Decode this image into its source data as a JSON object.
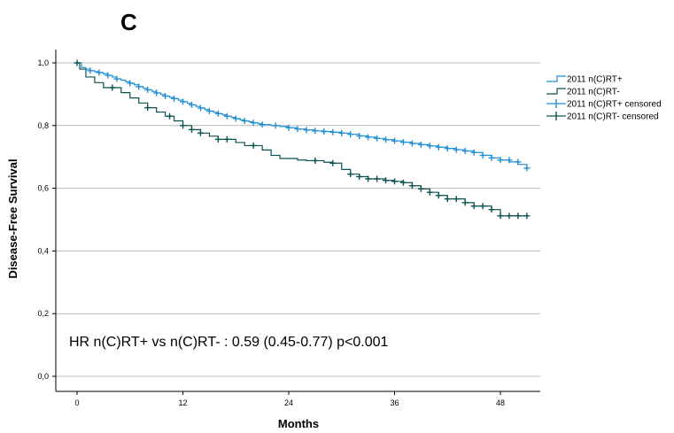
{
  "chart_data": {
    "type": "line",
    "panel_label": "C",
    "xlabel": "Months",
    "ylabel": "Disease-Free Survival",
    "xlim": [
      -2,
      52
    ],
    "ylim": [
      0,
      1.0
    ],
    "x_ticks": [
      0,
      12,
      24,
      36,
      48
    ],
    "x_tick_labels": [
      "0",
      "12",
      "24",
      "36",
      "48"
    ],
    "y_ticks": [
      0.0,
      0.2,
      0.4,
      0.6,
      0.8,
      1.0
    ],
    "y_tick_labels": [
      "0,0",
      "0,2",
      "0,4",
      "0,6",
      "0,8",
      "1,0"
    ],
    "grid": "horizontal",
    "legend_position": "right",
    "legend": [
      {
        "label": "2011 n(C)RT+",
        "kind": "step",
        "color": "#1f8fd6"
      },
      {
        "label": "2011 n(C)RT-",
        "kind": "step",
        "color": "#0b5150"
      },
      {
        "label": "2011 n(C)RT+ censored",
        "kind": "censor",
        "color": "#1f8fd6"
      },
      {
        "label": "2011 n(C)RT- censored",
        "kind": "censor",
        "color": "#0b5150"
      }
    ],
    "annotation": "HR n(C)RT+ vs n(C)RT- : 0.59 (0.45-0.77) p<0.001",
    "series": [
      {
        "name": "2011 n(C)RT+",
        "color": "#1f8fd6",
        "x": [
          0,
          0.5,
          1,
          1.5,
          2,
          2.5,
          3,
          3.5,
          4,
          4.5,
          5,
          5.5,
          6,
          6.5,
          7,
          7.5,
          8,
          8.5,
          9,
          9.5,
          10,
          10.5,
          11,
          11.5,
          12,
          12.5,
          13,
          13.5,
          14,
          14.5,
          15,
          15.5,
          16,
          16.5,
          17,
          17.5,
          18,
          18.5,
          19,
          19.5,
          20,
          20.5,
          21,
          22,
          23,
          24,
          25,
          26,
          27,
          28,
          29,
          30,
          31,
          32,
          33,
          34,
          35,
          36,
          37,
          38,
          39,
          40,
          41,
          42,
          43,
          44,
          45,
          46,
          47,
          48,
          49,
          50,
          51
        ],
        "y": [
          1.0,
          0.985,
          0.98,
          0.975,
          0.972,
          0.969,
          0.965,
          0.96,
          0.955,
          0.949,
          0.945,
          0.94,
          0.935,
          0.93,
          0.924,
          0.919,
          0.914,
          0.909,
          0.904,
          0.899,
          0.894,
          0.89,
          0.886,
          0.881,
          0.876,
          0.871,
          0.866,
          0.861,
          0.856,
          0.851,
          0.846,
          0.842,
          0.838,
          0.834,
          0.83,
          0.826,
          0.822,
          0.818,
          0.815,
          0.812,
          0.809,
          0.806,
          0.803,
          0.8,
          0.797,
          0.793,
          0.789,
          0.786,
          0.783,
          0.781,
          0.779,
          0.776,
          0.772,
          0.767,
          0.763,
          0.759,
          0.755,
          0.751,
          0.747,
          0.743,
          0.739,
          0.735,
          0.731,
          0.727,
          0.723,
          0.719,
          0.714,
          0.705,
          0.697,
          0.69,
          0.684,
          0.676,
          0.664
        ],
        "censored": [
          [
            1.5,
            0.975
          ],
          [
            2.5,
            0.969
          ],
          [
            3.5,
            0.96
          ],
          [
            4.5,
            0.949
          ],
          [
            6,
            0.935
          ],
          [
            7,
            0.924
          ],
          [
            8,
            0.914
          ],
          [
            9,
            0.904
          ],
          [
            10,
            0.894
          ],
          [
            11,
            0.886
          ],
          [
            12,
            0.876
          ],
          [
            13,
            0.866
          ],
          [
            14,
            0.856
          ],
          [
            15,
            0.846
          ],
          [
            16,
            0.838
          ],
          [
            17,
            0.83
          ],
          [
            18,
            0.822
          ],
          [
            19,
            0.815
          ],
          [
            20,
            0.809
          ],
          [
            21,
            0.803
          ],
          [
            22.5,
            0.8
          ],
          [
            24,
            0.793
          ],
          [
            25,
            0.789
          ],
          [
            26,
            0.786
          ],
          [
            27,
            0.783
          ],
          [
            28,
            0.781
          ],
          [
            29,
            0.779
          ],
          [
            30,
            0.776
          ],
          [
            31,
            0.772
          ],
          [
            32,
            0.767
          ],
          [
            33,
            0.763
          ],
          [
            34,
            0.759
          ],
          [
            35,
            0.755
          ],
          [
            36,
            0.751
          ],
          [
            37,
            0.747
          ],
          [
            38,
            0.743
          ],
          [
            39,
            0.739
          ],
          [
            40,
            0.735
          ],
          [
            41,
            0.731
          ],
          [
            42,
            0.727
          ],
          [
            43,
            0.723
          ],
          [
            44,
            0.719
          ],
          [
            45,
            0.714
          ],
          [
            46,
            0.705
          ],
          [
            47,
            0.697
          ],
          [
            48,
            0.69
          ],
          [
            49,
            0.69
          ],
          [
            50,
            0.684
          ],
          [
            51,
            0.664
          ]
        ]
      },
      {
        "name": "2011 n(C)RT-",
        "color": "#0b5150",
        "x": [
          0,
          0.3,
          1,
          2,
          3,
          5,
          6,
          7,
          8,
          9,
          10,
          11,
          12,
          13,
          14,
          15,
          16,
          18,
          19,
          21,
          22,
          23,
          25,
          26,
          28,
          29,
          30,
          31,
          32,
          33,
          35,
          36,
          37,
          38,
          39,
          40,
          41,
          42,
          44,
          45,
          47,
          48,
          49,
          50,
          51
        ],
        "y": [
          1.0,
          0.98,
          0.955,
          0.937,
          0.921,
          0.905,
          0.888,
          0.872,
          0.857,
          0.843,
          0.83,
          0.815,
          0.8,
          0.787,
          0.776,
          0.766,
          0.756,
          0.746,
          0.736,
          0.722,
          0.705,
          0.695,
          0.69,
          0.688,
          0.683,
          0.68,
          0.66,
          0.645,
          0.637,
          0.63,
          0.625,
          0.622,
          0.618,
          0.608,
          0.598,
          0.587,
          0.577,
          0.566,
          0.554,
          0.543,
          0.532,
          0.512,
          0.512,
          0.512,
          0.512
        ],
        "censored": [
          [
            0,
            1.0
          ],
          [
            4,
            0.921
          ],
          [
            8,
            0.857
          ],
          [
            10.5,
            0.83
          ],
          [
            12,
            0.8
          ],
          [
            13,
            0.787
          ],
          [
            14,
            0.776
          ],
          [
            16,
            0.756
          ],
          [
            17,
            0.756
          ],
          [
            20,
            0.736
          ],
          [
            27,
            0.688
          ],
          [
            29,
            0.68
          ],
          [
            31,
            0.645
          ],
          [
            32,
            0.637
          ],
          [
            33,
            0.63
          ],
          [
            34,
            0.63
          ],
          [
            35,
            0.625
          ],
          [
            36,
            0.622
          ],
          [
            37,
            0.618
          ],
          [
            38,
            0.608
          ],
          [
            39,
            0.598
          ],
          [
            40,
            0.587
          ],
          [
            41,
            0.577
          ],
          [
            42,
            0.566
          ],
          [
            43,
            0.566
          ],
          [
            44,
            0.554
          ],
          [
            45,
            0.543
          ],
          [
            46,
            0.543
          ],
          [
            47,
            0.532
          ],
          [
            48,
            0.512
          ],
          [
            49,
            0.512
          ],
          [
            50,
            0.512
          ],
          [
            51,
            0.512
          ]
        ]
      }
    ]
  }
}
